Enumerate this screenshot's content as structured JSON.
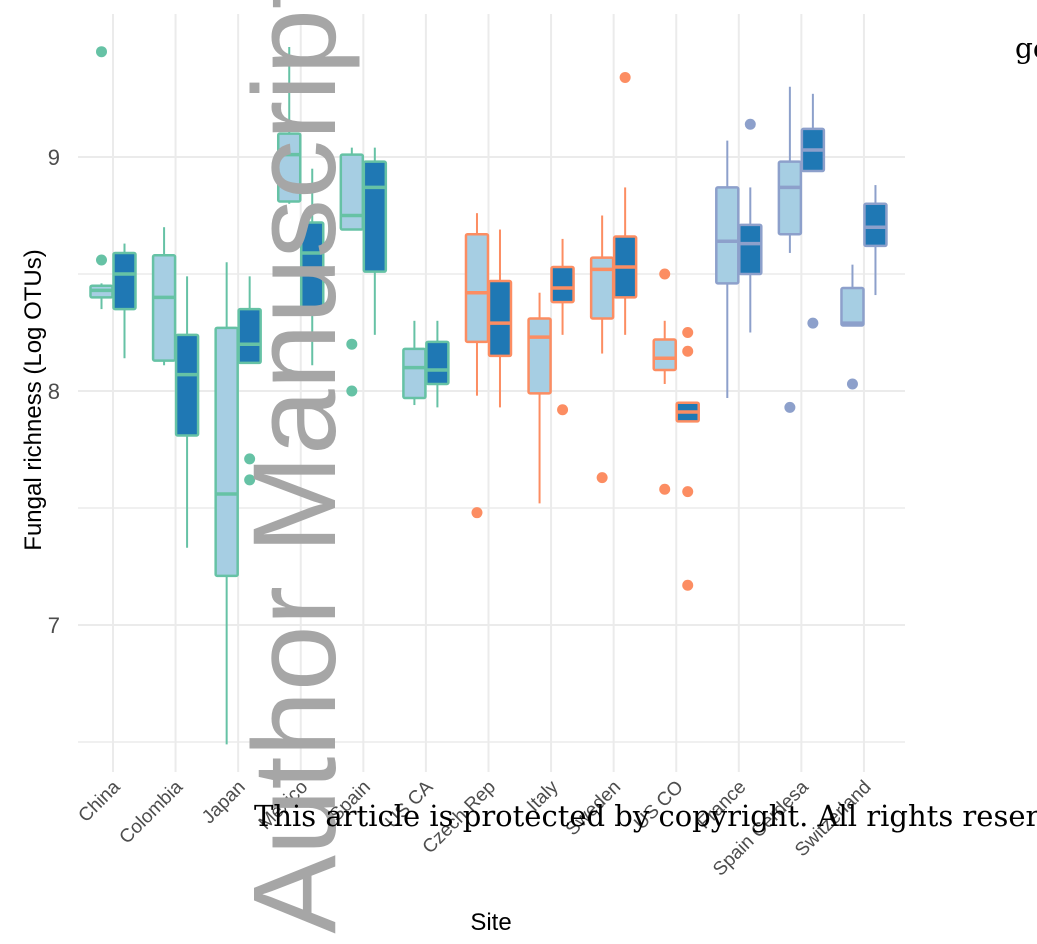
{
  "chart_data": {
    "type": "boxplot",
    "xlabel": "Site",
    "ylabel": "Fungal richness (Log OTUs)",
    "ylim": [
      6.45,
      9.5
    ],
    "yticks": [
      7,
      8,
      9
    ],
    "grid": true,
    "categories": [
      "China",
      "Colombia",
      "Japan",
      "Mexico",
      "Spain",
      "US CA",
      "Czech Rep",
      "Italy",
      "Sweden",
      "US CO",
      "France",
      "Spain Cerdesa",
      "Switzerland"
    ],
    "colors": {
      "green": "#66c2a5",
      "orange": "#fc8d62",
      "blue": "#8da0cb",
      "fill_light": "#a6cee3",
      "fill_dark": "#1f78b4"
    },
    "boxes": [
      {
        "site": "China",
        "variant": "light",
        "edge": "green",
        "lw": 8.35,
        "q1": 8.4,
        "med": 8.43,
        "q3": 8.45,
        "uw": 8.46,
        "out": [
          8.56,
          9.45
        ]
      },
      {
        "site": "China",
        "variant": "dark",
        "edge": "green",
        "lw": 8.14,
        "q1": 8.35,
        "med": 8.5,
        "q3": 8.59,
        "uw": 8.63,
        "out": []
      },
      {
        "site": "Colombia",
        "variant": "light",
        "edge": "green",
        "lw": 8.11,
        "q1": 8.13,
        "med": 8.4,
        "q3": 8.58,
        "uw": 8.7,
        "out": []
      },
      {
        "site": "Colombia",
        "variant": "dark",
        "edge": "green",
        "lw": 7.33,
        "q1": 7.81,
        "med": 8.07,
        "q3": 8.24,
        "uw": 8.49,
        "out": []
      },
      {
        "site": "Japan",
        "variant": "light",
        "edge": "green",
        "lw": 6.49,
        "q1": 7.21,
        "med": 7.56,
        "q3": 8.27,
        "uw": 8.55,
        "out": []
      },
      {
        "site": "Japan",
        "variant": "dark",
        "edge": "green",
        "lw": 8.12,
        "q1": 8.12,
        "med": 8.2,
        "q3": 8.35,
        "uw": 8.49,
        "out": [
          7.71,
          7.62
        ]
      },
      {
        "site": "Mexico",
        "variant": "light",
        "edge": "green",
        "lw": 8.8,
        "q1": 8.81,
        "med": 9.01,
        "q3": 9.1,
        "uw": 9.47,
        "out": [
          8.07
        ]
      },
      {
        "site": "Mexico",
        "variant": "dark",
        "edge": "green",
        "lw": 8.11,
        "q1": 8.34,
        "med": 8.59,
        "q3": 8.72,
        "uw": 8.95,
        "out": []
      },
      {
        "site": "Spain",
        "variant": "light",
        "edge": "green",
        "lw": 8.69,
        "q1": 8.69,
        "med": 8.75,
        "q3": 9.01,
        "uw": 9.04,
        "out": [
          8.2,
          8.0
        ]
      },
      {
        "site": "Spain",
        "variant": "dark",
        "edge": "green",
        "lw": 8.24,
        "q1": 8.51,
        "med": 8.87,
        "q3": 8.98,
        "uw": 9.04,
        "out": []
      },
      {
        "site": "US CA",
        "variant": "light",
        "edge": "green",
        "lw": 7.94,
        "q1": 7.97,
        "med": 8.1,
        "q3": 8.18,
        "uw": 8.3,
        "out": []
      },
      {
        "site": "US CA",
        "variant": "dark",
        "edge": "green",
        "lw": 7.93,
        "q1": 8.03,
        "med": 8.09,
        "q3": 8.21,
        "uw": 8.3,
        "out": []
      },
      {
        "site": "Czech Rep",
        "variant": "light",
        "edge": "orange",
        "lw": 7.98,
        "q1": 8.21,
        "med": 8.42,
        "q3": 8.67,
        "uw": 8.76,
        "out": [
          7.48
        ]
      },
      {
        "site": "Czech Rep",
        "variant": "dark",
        "edge": "orange",
        "lw": 7.93,
        "q1": 8.15,
        "med": 8.29,
        "q3": 8.47,
        "uw": 8.69,
        "out": []
      },
      {
        "site": "Italy",
        "variant": "light",
        "edge": "orange",
        "lw": 7.52,
        "q1": 7.99,
        "med": 8.23,
        "q3": 8.31,
        "uw": 8.42,
        "out": []
      },
      {
        "site": "Italy",
        "variant": "dark",
        "edge": "orange",
        "lw": 8.24,
        "q1": 8.38,
        "med": 8.44,
        "q3": 8.53,
        "uw": 8.65,
        "out": [
          7.92
        ]
      },
      {
        "site": "Sweden",
        "variant": "light",
        "edge": "orange",
        "lw": 8.16,
        "q1": 8.31,
        "med": 8.52,
        "q3": 8.57,
        "uw": 8.75,
        "out": [
          7.63
        ]
      },
      {
        "site": "Sweden",
        "variant": "dark",
        "edge": "orange",
        "lw": 8.24,
        "q1": 8.4,
        "med": 8.53,
        "q3": 8.66,
        "uw": 8.87,
        "out": [
          9.34
        ]
      },
      {
        "site": "US CO",
        "variant": "light",
        "edge": "orange",
        "lw": 8.03,
        "q1": 8.09,
        "med": 8.14,
        "q3": 8.22,
        "uw": 8.3,
        "out": [
          8.5,
          7.58
        ]
      },
      {
        "site": "US CO",
        "variant": "dark",
        "edge": "orange",
        "lw": 7.87,
        "q1": 7.87,
        "med": 7.91,
        "q3": 7.95,
        "uw": 7.95,
        "out": [
          8.25,
          8.17,
          7.57,
          7.17
        ]
      },
      {
        "site": "France",
        "variant": "light",
        "edge": "blue",
        "lw": 7.97,
        "q1": 8.46,
        "med": 8.64,
        "q3": 8.87,
        "uw": 9.07,
        "out": []
      },
      {
        "site": "France",
        "variant": "dark",
        "edge": "blue",
        "lw": 8.25,
        "q1": 8.5,
        "med": 8.63,
        "q3": 8.71,
        "uw": 8.87,
        "out": [
          9.14
        ]
      },
      {
        "site": "Spain Cerdesa",
        "variant": "light",
        "edge": "blue",
        "lw": 8.59,
        "q1": 8.67,
        "med": 8.87,
        "q3": 8.98,
        "uw": 9.3,
        "out": [
          7.93
        ]
      },
      {
        "site": "Spain Cerdesa",
        "variant": "dark",
        "edge": "blue",
        "lw": 8.94,
        "q1": 8.94,
        "med": 9.03,
        "q3": 9.12,
        "uw": 9.27,
        "out": [
          8.29
        ]
      },
      {
        "site": "Switzerland",
        "variant": "light",
        "edge": "blue",
        "lw": 8.28,
        "q1": 8.28,
        "med": 8.29,
        "q3": 8.44,
        "uw": 8.54,
        "out": [
          8.03
        ]
      },
      {
        "site": "Switzerland",
        "variant": "dark",
        "edge": "blue",
        "lw": 8.41,
        "q1": 8.62,
        "med": 8.7,
        "q3": 8.8,
        "uw": 8.88,
        "out": []
      }
    ]
  },
  "overlay": {
    "copyright": "This article is protected by copyright. All rights reserved",
    "watermark": "Author Manuscript",
    "corner_fragment": "go"
  }
}
